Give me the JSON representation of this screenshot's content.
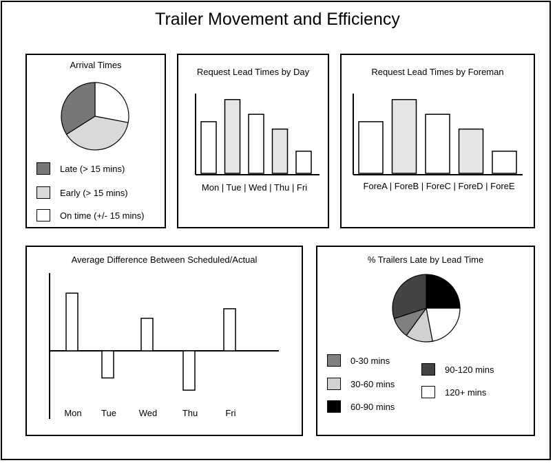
{
  "title": "Trailer Movement and Efficiency",
  "colors": {
    "late": "#777777",
    "early": "#d9d9d9",
    "ontime": "#ffffff",
    "light_bar": "#e6e6e6",
    "c0_30": "#808080",
    "c30_60": "#d0d0d0",
    "c60_90": "#000000",
    "c90_120": "#444444",
    "c120": "#ffffff"
  },
  "arrival_legend": {
    "late": "Late (> 15 mins)",
    "early": "Early (> 15 mins)",
    "ontime": "On time (+/- 15 mins)"
  },
  "day_axis_text": "Mon | Tue | Wed | Thu | Fri",
  "foreman_axis_text": "ForeA | ForeB | ForeC | ForeD | ForeE",
  "lead_legend": {
    "c0_30": "0-30 mins",
    "c30_60": "30-60 mins",
    "c60_90": "60-90 mins",
    "c90_120": "90-120 mins",
    "c120": "120+ mins"
  },
  "chart_data": [
    {
      "type": "pie",
      "title": "Arrival Times",
      "labels": [
        "On time (+/- 15 mins)",
        "Early (> 15 mins)",
        "Late (> 15 mins)"
      ],
      "values": [
        28,
        38,
        34
      ]
    },
    {
      "type": "bar",
      "title": "Request Lead Times by Day",
      "categories": [
        "Mon",
        "Tue",
        "Wed",
        "Thu",
        "Fri"
      ],
      "values": [
        70,
        100,
        80,
        60,
        30
      ],
      "ylim": [
        0,
        110
      ]
    },
    {
      "type": "bar",
      "title": "Request Lead Times by Foreman",
      "categories": [
        "ForeA",
        "ForeB",
        "ForeC",
        "ForeD",
        "ForeE"
      ],
      "values": [
        70,
        100,
        80,
        60,
        30
      ],
      "ylim": [
        0,
        110
      ]
    },
    {
      "type": "bar",
      "title": "Average Difference Between Scheduled/Actual",
      "categories": [
        "Mon",
        "Tue",
        "Wed",
        "Thu",
        "Fri"
      ],
      "values": [
        85,
        -40,
        48,
        -58,
        62
      ],
      "ylim": [
        -100,
        115
      ]
    },
    {
      "type": "pie",
      "title": "% Trailers Late by Lead Time",
      "labels": [
        "60-90 mins",
        "120+ mins",
        "30-60 mins",
        "0-30 mins",
        "90-120 mins"
      ],
      "values": [
        25,
        22,
        13,
        10,
        30
      ]
    }
  ]
}
